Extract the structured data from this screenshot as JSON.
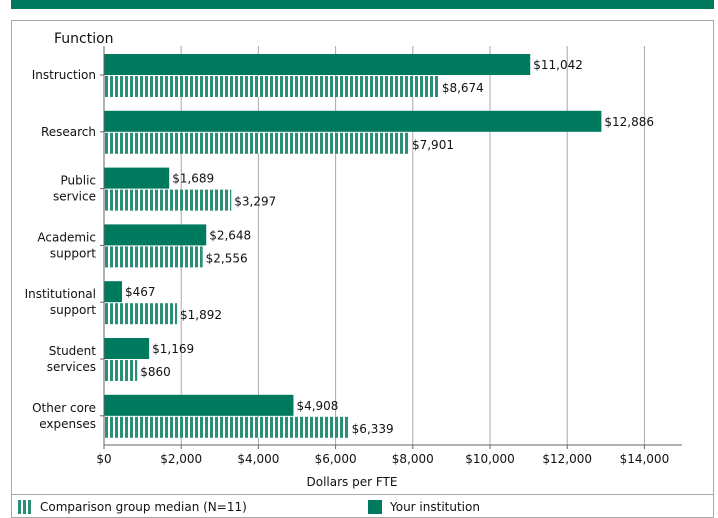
{
  "chart_data": {
    "type": "bar",
    "orientation": "horizontal",
    "title": "Function",
    "xlabel": "Dollars per FTE",
    "xlim": [
      0,
      15000
    ],
    "xticks": [
      "$0",
      "$2,000",
      "$4,000",
      "$6,000",
      "$8,000",
      "$10,000",
      "$12,000",
      "$14,000"
    ],
    "xtick_values": [
      0,
      2000,
      4000,
      6000,
      8000,
      10000,
      12000,
      14000
    ],
    "grid": true,
    "legend_position": "bottom",
    "categories": [
      [
        "Instruction"
      ],
      [
        "Research"
      ],
      [
        "Public",
        "service"
      ],
      [
        "Academic",
        "support"
      ],
      [
        "Institutional",
        "support"
      ],
      [
        "Student",
        "services"
      ],
      [
        "Other core",
        "expenses"
      ]
    ],
    "series": [
      {
        "name": "Your institution",
        "color": "#007a5e",
        "pattern": "solid",
        "values": [
          11042,
          12886,
          1689,
          2648,
          467,
          1169,
          4908
        ],
        "labels": [
          "$11,042",
          "$12,886",
          "$1,689",
          "$2,648",
          "$467",
          "$1,169",
          "$4,908"
        ]
      },
      {
        "name": "Comparison group median (N=11)",
        "color": "#2a8f74",
        "pattern": "striped",
        "values": [
          8674,
          7901,
          3297,
          2556,
          1892,
          860,
          6339
        ],
        "labels": [
          "$8,674",
          "$7,901",
          "$3,297",
          "$2,556",
          "$1,892",
          "$860",
          "$6,339"
        ]
      }
    ]
  },
  "legend": {
    "comparison_label": "Comparison group median (N=11)",
    "institution_label": "Your institution"
  }
}
